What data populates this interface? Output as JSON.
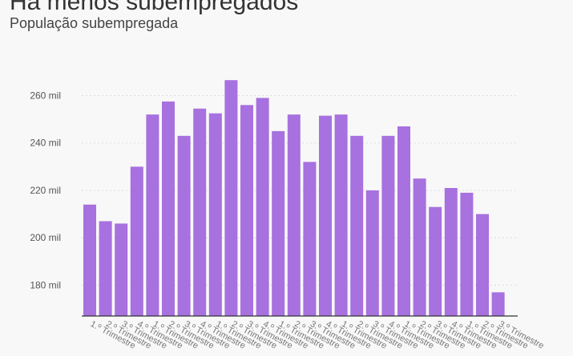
{
  "header": {
    "title": "Há menos subempregados",
    "subtitle": "População subempregada"
  },
  "colors": {
    "bar": "#a771df",
    "grid": "#dcdcdc",
    "axis": "#333333",
    "background": "#f8f8f8"
  },
  "chart_data": {
    "type": "bar",
    "title": "Há menos subempregados",
    "subtitle": "População subempregada",
    "xlabel": "",
    "ylabel": "",
    "ylim": [
      167,
      275
    ],
    "grid": true,
    "legend": "none",
    "y_ticks": [
      {
        "value": 180,
        "label": "180 mil"
      },
      {
        "value": 200,
        "label": "200 mil"
      },
      {
        "value": 220,
        "label": "220 mil"
      },
      {
        "value": 240,
        "label": "240 mil"
      },
      {
        "value": 260,
        "label": "260 mil"
      }
    ],
    "categories": [
      "1.º Trimestre",
      "2.º Trimestre",
      "3.º Trimestre",
      "4.º Trimestre",
      "1.º Trimestre",
      "2.º Trimestre",
      "3.º Trimestre",
      "4.º Trimestre",
      "1.º Trimestre",
      "2.º Trimestre",
      "3.º Trimestre",
      "4.º Trimestre",
      "1.º Trimestre",
      "2.º Trimestre",
      "3.º Trimestre",
      "4.º Trimestre",
      "1.º Trimestre",
      "2.º Trimestre",
      "3.º Trimestre",
      "4.º Trimestre",
      "1.º Trimestre",
      "2.º Trimestre",
      "3.º Trimestre",
      "4.º Trimestre",
      "1.º Trimestre",
      "2.º Trimestre",
      "3.º Trimestre"
    ],
    "values": [
      214,
      207,
      206,
      230,
      252,
      257.5,
      243,
      254.5,
      252.5,
      266.5,
      256,
      259,
      245,
      252,
      232,
      251.5,
      252,
      243,
      220,
      243,
      247,
      225,
      213,
      221,
      219,
      210,
      177
    ]
  }
}
